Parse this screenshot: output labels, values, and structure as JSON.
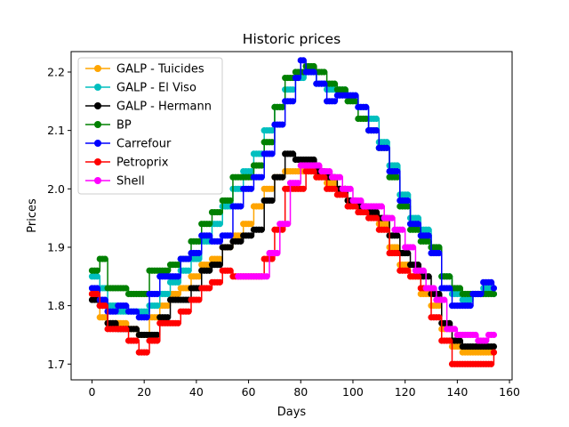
{
  "chart_data": {
    "type": "line",
    "title": "Historic prices",
    "xlabel": "Days",
    "ylabel": "Prices",
    "xlim": [
      -8,
      161
    ],
    "ylim": [
      1.673,
      2.235
    ],
    "xticks": [
      0,
      20,
      40,
      60,
      80,
      100,
      120,
      140,
      160
    ],
    "yticks": [
      1.7,
      1.8,
      1.9,
      2.0,
      2.1,
      2.2
    ],
    "xtick_labels": [
      "0",
      "20",
      "40",
      "60",
      "80",
      "100",
      "120",
      "140",
      "160"
    ],
    "ytick_labels": [
      "1.7",
      "1.8",
      "1.9",
      "2.0",
      "2.1",
      "2.2"
    ],
    "grid": false,
    "legend_position": "upper-left",
    "series": [
      {
        "name": "GALP - Tuicides",
        "color": "#ffa500",
        "x": [
          0,
          3,
          6,
          10,
          14,
          18,
          22,
          26,
          30,
          34,
          38,
          42,
          46,
          50,
          54,
          58,
          62,
          66,
          70,
          74,
          78,
          82,
          86,
          90,
          94,
          98,
          102,
          106,
          110,
          114,
          118,
          122,
          126,
          130,
          134,
          138,
          142,
          146,
          150,
          154
        ],
        "y": [
          1.82,
          1.78,
          1.77,
          1.77,
          1.76,
          1.75,
          1.78,
          1.8,
          1.82,
          1.83,
          1.85,
          1.87,
          1.88,
          1.9,
          1.92,
          1.94,
          1.97,
          2.0,
          2.02,
          2.03,
          2.03,
          2.03,
          2.02,
          2.01,
          2.0,
          1.98,
          1.97,
          1.96,
          1.94,
          1.9,
          1.87,
          1.85,
          1.82,
          1.8,
          1.76,
          1.73,
          1.72,
          1.72,
          1.72,
          1.72
        ]
      },
      {
        "name": "GALP - El Viso",
        "color": "#00bfbf",
        "x": [
          0,
          3,
          6,
          10,
          14,
          18,
          22,
          26,
          30,
          34,
          38,
          42,
          46,
          50,
          54,
          58,
          62,
          66,
          70,
          74,
          78,
          82,
          86,
          90,
          94,
          98,
          102,
          106,
          110,
          114,
          118,
          122,
          126,
          130,
          134,
          138,
          142,
          146,
          150,
          154
        ],
        "y": [
          1.85,
          1.83,
          1.8,
          1.79,
          1.79,
          1.79,
          1.8,
          1.82,
          1.84,
          1.86,
          1.88,
          1.91,
          1.94,
          1.97,
          2.0,
          2.03,
          2.06,
          2.1,
          2.14,
          2.17,
          2.19,
          2.2,
          2.18,
          2.17,
          2.17,
          2.16,
          2.14,
          2.12,
          2.08,
          2.04,
          1.99,
          1.95,
          1.93,
          1.9,
          1.85,
          1.82,
          1.81,
          1.82,
          1.83,
          1.82
        ]
      },
      {
        "name": "GALP - Hermann",
        "color": "#000000",
        "x": [
          0,
          3,
          6,
          10,
          14,
          18,
          22,
          26,
          30,
          34,
          38,
          42,
          46,
          50,
          54,
          58,
          62,
          66,
          70,
          74,
          78,
          82,
          86,
          90,
          94,
          98,
          102,
          106,
          110,
          114,
          118,
          122,
          126,
          130,
          134,
          138,
          142,
          146,
          150,
          154
        ],
        "y": [
          1.81,
          1.8,
          1.77,
          1.76,
          1.76,
          1.75,
          1.75,
          1.78,
          1.81,
          1.81,
          1.83,
          1.86,
          1.87,
          1.9,
          1.91,
          1.92,
          1.93,
          1.98,
          2.02,
          2.06,
          2.05,
          2.05,
          2.03,
          2.02,
          2.0,
          1.98,
          1.97,
          1.96,
          1.95,
          1.92,
          1.89,
          1.87,
          1.85,
          1.82,
          1.77,
          1.74,
          1.73,
          1.73,
          1.73,
          1.73
        ]
      },
      {
        "name": "BP",
        "color": "#008000",
        "x": [
          0,
          3,
          6,
          10,
          14,
          18,
          22,
          26,
          30,
          34,
          38,
          42,
          46,
          50,
          54,
          58,
          62,
          66,
          70,
          74,
          78,
          82,
          86,
          90,
          94,
          98,
          102,
          106,
          110,
          114,
          118,
          122,
          126,
          130,
          134,
          138,
          142,
          146,
          150,
          154
        ],
        "y": [
          1.86,
          1.88,
          1.83,
          1.83,
          1.82,
          1.82,
          1.86,
          1.86,
          1.87,
          1.88,
          1.91,
          1.94,
          1.96,
          1.98,
          2.02,
          2.02,
          2.04,
          2.08,
          2.14,
          2.19,
          2.2,
          2.21,
          2.2,
          2.18,
          2.17,
          2.15,
          2.12,
          2.1,
          2.07,
          2.02,
          1.97,
          1.93,
          1.91,
          1.9,
          1.85,
          1.83,
          1.82,
          1.82,
          1.82,
          1.82
        ]
      },
      {
        "name": "Carrefour",
        "color": "#0000ff",
        "x": [
          0,
          3,
          6,
          10,
          14,
          18,
          22,
          26,
          30,
          34,
          38,
          42,
          46,
          50,
          54,
          58,
          62,
          66,
          70,
          74,
          78,
          80,
          82,
          86,
          90,
          94,
          98,
          102,
          106,
          110,
          114,
          118,
          122,
          126,
          130,
          134,
          138,
          142,
          146,
          150,
          154
        ],
        "y": [
          1.83,
          1.81,
          1.79,
          1.8,
          1.79,
          1.78,
          1.82,
          1.85,
          1.85,
          1.88,
          1.89,
          1.92,
          1.91,
          1.92,
          1.97,
          2.0,
          2.02,
          2.06,
          2.11,
          2.15,
          2.19,
          2.22,
          2.2,
          2.18,
          2.15,
          2.16,
          2.16,
          2.14,
          2.1,
          2.07,
          2.03,
          1.98,
          1.94,
          1.92,
          1.89,
          1.83,
          1.8,
          1.8,
          1.82,
          1.84,
          1.83
        ]
      },
      {
        "name": "Petroprix",
        "color": "#ff0000",
        "x": [
          0,
          3,
          6,
          10,
          14,
          18,
          22,
          26,
          30,
          34,
          38,
          42,
          46,
          50,
          54,
          58,
          62,
          66,
          70,
          74,
          78,
          82,
          86,
          90,
          94,
          98,
          102,
          106,
          110,
          114,
          118,
          122,
          126,
          130,
          134,
          138,
          142,
          146,
          150,
          154
        ],
        "y": [
          1.82,
          1.8,
          1.76,
          1.76,
          1.74,
          1.72,
          1.74,
          1.77,
          1.77,
          1.79,
          1.81,
          1.83,
          1.84,
          1.86,
          1.85,
          1.85,
          1.85,
          1.88,
          1.93,
          2.0,
          2.0,
          2.03,
          2.02,
          2.0,
          1.99,
          1.97,
          1.96,
          1.95,
          1.93,
          1.89,
          1.86,
          1.85,
          1.83,
          1.78,
          1.74,
          1.7,
          1.7,
          1.7,
          1.7,
          1.72
        ]
      },
      {
        "name": "Shell",
        "color": "#ff00ff",
        "x": [
          56,
          60,
          64,
          68,
          72,
          76,
          80,
          84,
          88,
          92,
          96,
          100,
          104,
          108,
          112,
          116,
          120,
          124,
          128,
          132,
          136,
          140,
          144,
          148,
          152,
          154
        ],
        "y": [
          1.85,
          1.85,
          1.85,
          1.89,
          1.94,
          2.01,
          2.04,
          2.04,
          2.03,
          2.02,
          2.0,
          1.98,
          1.97,
          1.97,
          1.95,
          1.93,
          1.9,
          1.86,
          1.83,
          1.81,
          1.76,
          1.75,
          1.75,
          1.74,
          1.75,
          1.75
        ]
      }
    ]
  }
}
